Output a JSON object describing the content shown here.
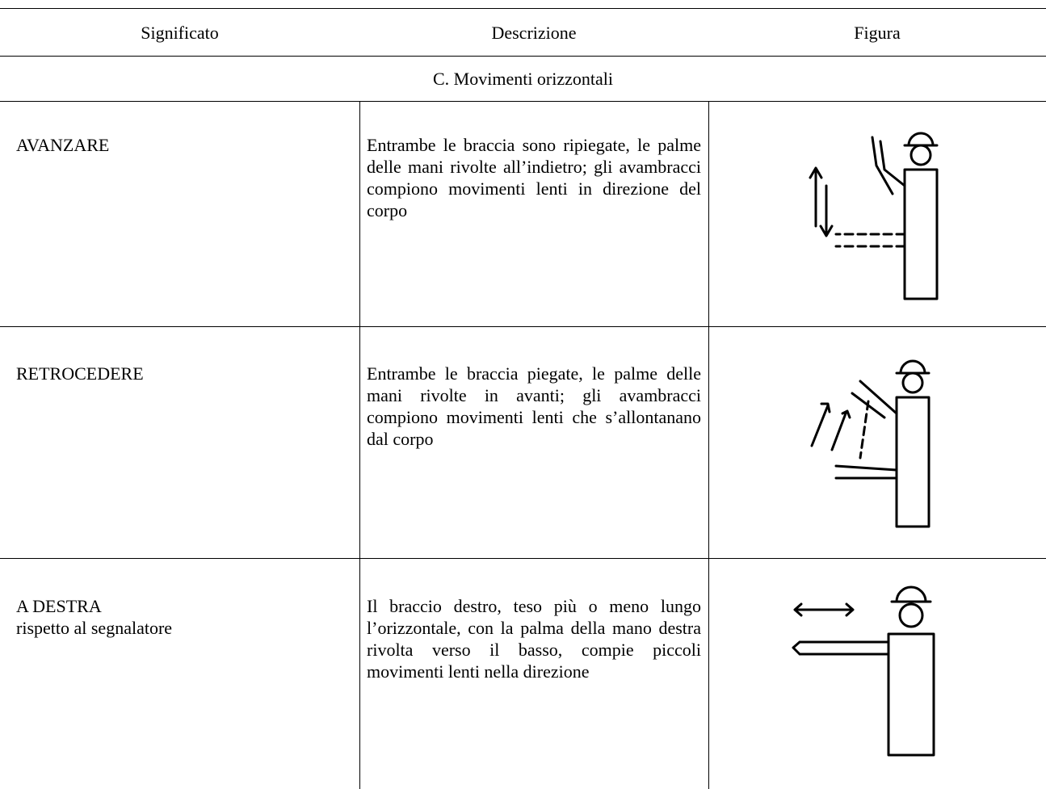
{
  "table": {
    "header": [
      "Significato",
      "Descrizione",
      "Figura"
    ],
    "section": "C. Movimenti orizzontali",
    "rows": [
      {
        "meaning": [
          "AVANZARE"
        ],
        "description": "Entrambe le braccia sono ripiegate, le palme delle mani rivolte all’indietro; gli avambracci compiono movimenti lenti in direzione del corpo"
      },
      {
        "meaning": [
          "RETROCEDERE"
        ],
        "description": "Entrambe le braccia piegate, le palme delle mani rivolte in avanti; gli avambracci compiono movimenti lenti che s’allontanano dal corpo"
      },
      {
        "meaning": [
          "A DESTRA",
          "rispetto al segnalatore"
        ],
        "description": "Il braccio destro, teso più o meno lungo l’orizzontale, con la palma della mano destra rivolta verso il basso, compie piccoli movimenti lenti nella direzione"
      }
    ]
  }
}
